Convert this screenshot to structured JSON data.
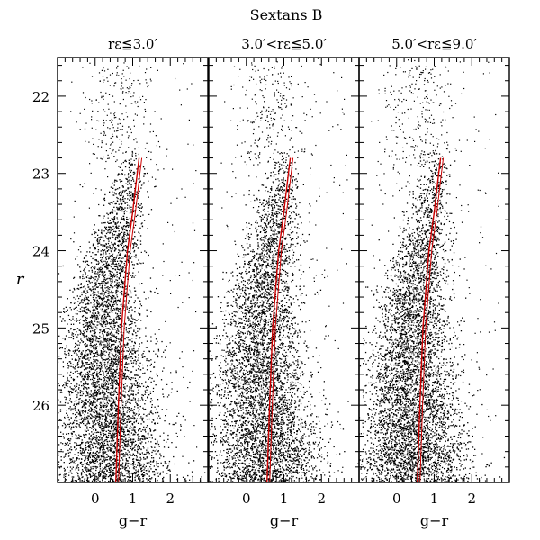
{
  "figure": {
    "title": "Sextans B",
    "shared_ylabel": "r",
    "shared_xlabel": "g−r"
  },
  "chart_data": [
    {
      "type": "scatter",
      "title": "rε≦3.0′",
      "xlabel": "g−r",
      "ylabel": "r",
      "xlim": [
        -1.0,
        3.0
      ],
      "ylim": [
        27.0,
        21.5
      ],
      "y_inverted": true,
      "x_ticks": [
        "0",
        "1",
        "2"
      ],
      "y_ticks": [
        "22",
        "23",
        "24",
        "25",
        "26"
      ],
      "series": [
        {
          "kind": "stellar-density",
          "color": "#000000",
          "ridge": [
            {
              "y": 22.7,
              "x": 1.1
            },
            {
              "y": 23.0,
              "x": 0.95
            },
            {
              "y": 23.5,
              "x": 0.7
            },
            {
              "y": 24.0,
              "x": 0.45
            },
            {
              "y": 24.5,
              "x": 0.3
            },
            {
              "y": 25.0,
              "x": 0.22
            },
            {
              "y": 25.5,
              "x": 0.25
            },
            {
              "y": 26.0,
              "x": 0.3
            },
            {
              "y": 26.5,
              "x": 0.4
            },
            {
              "y": 27.0,
              "x": 0.5
            }
          ]
        },
        {
          "kind": "isochrone",
          "color": "#cc0000",
          "points": [
            {
              "x": 0.55,
              "y": 27.0
            },
            {
              "x": 0.62,
              "y": 26.0
            },
            {
              "x": 0.7,
              "y": 25.0
            },
            {
              "x": 0.78,
              "y": 24.5
            },
            {
              "x": 0.86,
              "y": 24.0
            },
            {
              "x": 1.0,
              "y": 23.5
            },
            {
              "x": 1.12,
              "y": 23.0
            },
            {
              "x": 1.17,
              "y": 22.8
            }
          ]
        }
      ]
    },
    {
      "type": "scatter",
      "title": "3.0′<rε≦5.0′",
      "xlabel": "g−r",
      "ylabel": "r",
      "xlim": [
        -1.0,
        3.0
      ],
      "ylim": [
        27.0,
        21.5
      ],
      "y_inverted": true,
      "x_ticks": [
        "0",
        "1",
        "2"
      ],
      "y_ticks": [
        "22",
        "23",
        "24",
        "25",
        "26"
      ],
      "series": [
        {
          "kind": "stellar-density",
          "color": "#000000",
          "ridge": [
            {
              "y": 22.8,
              "x": 1.1
            },
            {
              "y": 23.0,
              "x": 1.0
            },
            {
              "y": 23.5,
              "x": 0.8
            },
            {
              "y": 24.0,
              "x": 0.6
            },
            {
              "y": 24.5,
              "x": 0.45
            },
            {
              "y": 25.0,
              "x": 0.35
            },
            {
              "y": 25.5,
              "x": 0.35
            },
            {
              "y": 26.0,
              "x": 0.4
            },
            {
              "y": 26.5,
              "x": 0.45
            },
            {
              "y": 27.0,
              "x": 0.5
            }
          ]
        },
        {
          "kind": "isochrone",
          "color": "#cc0000",
          "points": [
            {
              "x": 0.55,
              "y": 27.0
            },
            {
              "x": 0.62,
              "y": 26.0
            },
            {
              "x": 0.7,
              "y": 25.0
            },
            {
              "x": 0.78,
              "y": 24.5
            },
            {
              "x": 0.86,
              "y": 24.0
            },
            {
              "x": 1.0,
              "y": 23.5
            },
            {
              "x": 1.12,
              "y": 23.0
            },
            {
              "x": 1.17,
              "y": 22.8
            }
          ]
        }
      ]
    },
    {
      "type": "scatter",
      "title": "5.0′<rε≦9.0′",
      "xlabel": "g−r",
      "ylabel": "r",
      "xlim": [
        -1.0,
        3.0
      ],
      "ylim": [
        27.0,
        21.5
      ],
      "y_inverted": true,
      "x_ticks": [
        "0",
        "1",
        "2"
      ],
      "y_ticks": [
        "22",
        "23",
        "24",
        "25",
        "26"
      ],
      "series": [
        {
          "kind": "stellar-density",
          "color": "#000000",
          "ridge": [
            {
              "y": 22.8,
              "x": 1.1
            },
            {
              "y": 23.0,
              "x": 1.0
            },
            {
              "y": 23.5,
              "x": 0.85
            },
            {
              "y": 24.0,
              "x": 0.65
            },
            {
              "y": 24.5,
              "x": 0.5
            },
            {
              "y": 25.0,
              "x": 0.4
            },
            {
              "y": 25.5,
              "x": 0.38
            },
            {
              "y": 26.0,
              "x": 0.4
            },
            {
              "y": 26.5,
              "x": 0.45
            },
            {
              "y": 27.0,
              "x": 0.5
            }
          ]
        },
        {
          "kind": "isochrone",
          "color": "#cc0000",
          "points": [
            {
              "x": 0.55,
              "y": 27.0
            },
            {
              "x": 0.62,
              "y": 26.0
            },
            {
              "x": 0.7,
              "y": 25.0
            },
            {
              "x": 0.78,
              "y": 24.5
            },
            {
              "x": 0.86,
              "y": 24.0
            },
            {
              "x": 1.0,
              "y": 23.5
            },
            {
              "x": 1.12,
              "y": 23.0
            },
            {
              "x": 1.17,
              "y": 22.8
            }
          ]
        }
      ]
    }
  ]
}
